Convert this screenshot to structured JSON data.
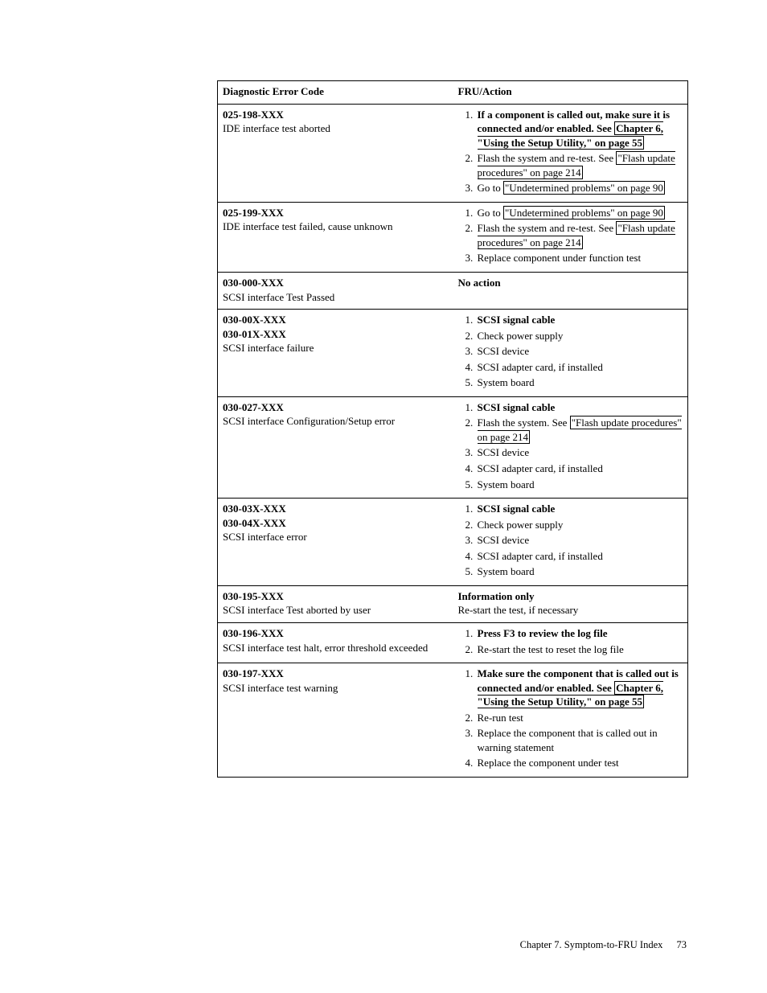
{
  "table": {
    "headers": {
      "code": "Diagnostic Error Code",
      "action": "FRU/Action"
    },
    "rows": [
      {
        "code_lines": [
          "025-198-XXX",
          "IDE interface test aborted"
        ],
        "bold_first_count": 1,
        "action_type": "list",
        "items": [
          {
            "bold": true,
            "segments": [
              {
                "t": "If a component is called out, make sure it is connected and/or enabled. See "
              },
              {
                "t": "Chapter 6, \"Using the Setup Utility,\" on page 55",
                "link": true
              }
            ]
          },
          {
            "segments": [
              {
                "t": "Flash the system and re-test. See "
              },
              {
                "t": "\"Flash update procedures\" on page 214",
                "link": true
              }
            ]
          },
          {
            "segments": [
              {
                "t": "Go to "
              },
              {
                "t": "\"Undetermined problems\" on page 90 ",
                "link": true
              }
            ]
          }
        ]
      },
      {
        "code_lines": [
          "025-199-XXX",
          "IDE interface test failed, cause unknown"
        ],
        "bold_first_count": 1,
        "action_type": "list",
        "items": [
          {
            "segments": [
              {
                "t": "Go to "
              },
              {
                "t": "\"Undetermined problems\" on page 90 ",
                "link": true
              }
            ]
          },
          {
            "segments": [
              {
                "t": "Flash the system and re-test. See "
              },
              {
                "t": "\"Flash update procedures\" on page 214",
                "link": true
              }
            ]
          },
          {
            "segments": [
              {
                "t": "Replace component under function test"
              }
            ]
          }
        ]
      },
      {
        "code_lines": [
          "030-000-XXX",
          "SCSI interface Test Passed"
        ],
        "bold_first_count": 1,
        "action_type": "plain",
        "plain": [
          {
            "bold": true,
            "t": "No action"
          }
        ]
      },
      {
        "code_lines": [
          "030-00X-XXX",
          "030-01X-XXX",
          "SCSI interface failure"
        ],
        "bold_first_count": 2,
        "action_type": "list",
        "items": [
          {
            "bold": true,
            "segments": [
              {
                "t": "SCSI signal cable"
              }
            ]
          },
          {
            "segments": [
              {
                "t": "Check power supply"
              }
            ]
          },
          {
            "segments": [
              {
                "t": "SCSI device"
              }
            ]
          },
          {
            "segments": [
              {
                "t": "SCSI adapter card, if installed"
              }
            ]
          },
          {
            "segments": [
              {
                "t": "System board"
              }
            ]
          }
        ]
      },
      {
        "code_lines": [
          "030-027-XXX",
          "SCSI interface Configuration/Setup error"
        ],
        "bold_first_count": 1,
        "action_type": "list",
        "items": [
          {
            "bold": true,
            "segments": [
              {
                "t": "SCSI signal cable"
              }
            ]
          },
          {
            "segments": [
              {
                "t": "Flash the system. See "
              },
              {
                "t": "\"Flash update procedures\" on page 214",
                "link": true
              }
            ]
          },
          {
            "segments": [
              {
                "t": "SCSI device"
              }
            ]
          },
          {
            "segments": [
              {
                "t": "SCSI adapter card, if installed"
              }
            ]
          },
          {
            "segments": [
              {
                "t": "System board"
              }
            ]
          }
        ]
      },
      {
        "code_lines": [
          "030-03X-XXX",
          "030-04X-XXX",
          "SCSI interface error"
        ],
        "bold_first_count": 2,
        "action_type": "list",
        "items": [
          {
            "bold": true,
            "segments": [
              {
                "t": "SCSI signal cable"
              }
            ]
          },
          {
            "segments": [
              {
                "t": "Check power supply"
              }
            ]
          },
          {
            "segments": [
              {
                "t": "SCSI device"
              }
            ]
          },
          {
            "segments": [
              {
                "t": "SCSI adapter card, if installed"
              }
            ]
          },
          {
            "segments": [
              {
                "t": "System board"
              }
            ]
          }
        ]
      },
      {
        "code_lines": [
          "030-195-XXX",
          "SCSI interface Test aborted by user"
        ],
        "bold_first_count": 1,
        "action_type": "plain",
        "plain": [
          {
            "bold": true,
            "t": "Information only"
          },
          {
            "t": "Re-start the test, if necessary"
          }
        ]
      },
      {
        "code_lines": [
          "030-196-XXX",
          "SCSI interface test halt, error threshold exceeded"
        ],
        "bold_first_count": 1,
        "action_type": "list",
        "items": [
          {
            "bold": true,
            "segments": [
              {
                "t": "Press F3 to review the log file"
              }
            ]
          },
          {
            "segments": [
              {
                "t": "Re-start the test to reset the log file"
              }
            ]
          }
        ]
      },
      {
        "code_lines": [
          "030-197-XXX",
          "SCSI interface test warning"
        ],
        "bold_first_count": 1,
        "action_type": "list",
        "items": [
          {
            "bold": true,
            "segments": [
              {
                "t": "Make sure the component that is called out is connected and/or enabled. See "
              },
              {
                "t": "Chapter 6, \"Using the Setup Utility,\" on page 55",
                "link": true
              }
            ]
          },
          {
            "segments": [
              {
                "t": "Re-run test"
              }
            ]
          },
          {
            "segments": [
              {
                "t": "Replace the component that is called out in warning statement"
              }
            ]
          },
          {
            "segments": [
              {
                "t": "Replace the component under test"
              }
            ]
          }
        ]
      }
    ]
  },
  "footer": {
    "chapter": "Chapter 7. Symptom-to-FRU Index",
    "page": "73"
  }
}
